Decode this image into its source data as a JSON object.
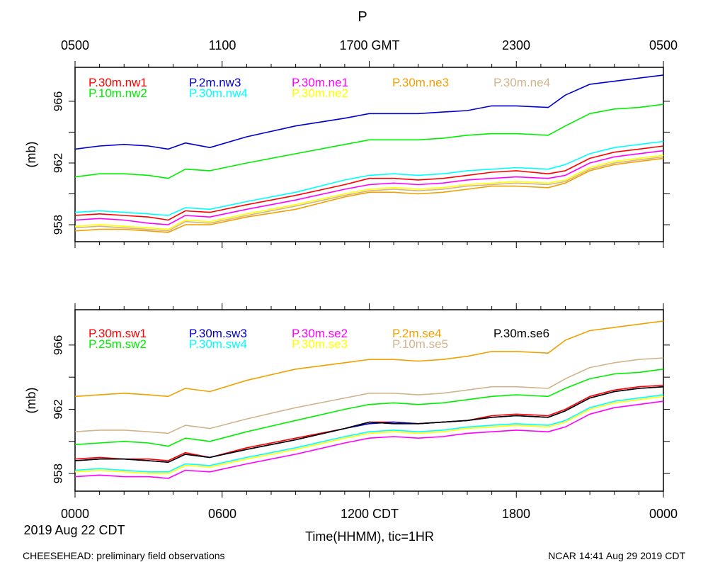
{
  "title": "P",
  "top_axis": {
    "ticks": [
      {
        "label": "0500",
        "hour": 0
      },
      {
        "label": "1100",
        "hour": 6
      },
      {
        "label": "1700 GMT",
        "hour": 12
      },
      {
        "label": "2300",
        "hour": 18
      },
      {
        "label": "0500",
        "hour": 24
      }
    ]
  },
  "bottom_axis": {
    "ticks": [
      {
        "label": "0000",
        "hour": 0
      },
      {
        "label": "0600",
        "hour": 6
      },
      {
        "label": "1200 CDT",
        "hour": 12
      },
      {
        "label": "1800",
        "hour": 18
      },
      {
        "label": "0000",
        "hour": 24
      }
    ],
    "date_label": "2019 Aug 22 CDT",
    "xlabel": "Time(HHMM), tic=1HR"
  },
  "footer": {
    "left": "CHEESEHEAD: preliminary field observations",
    "right": "NCAR 14:41 Aug 29 2019 CDT"
  },
  "chart_data": [
    {
      "type": "line",
      "ylabel": "(mb)",
      "xlim": [
        0,
        24
      ],
      "ylim": [
        956.9,
        968.2
      ],
      "yticks_labeled": [
        958,
        962,
        966
      ],
      "yticks_minor": [
        960,
        964
      ],
      "x": [
        0,
        1,
        2,
        3,
        3.8,
        4.5,
        5.5,
        7,
        9,
        11,
        12,
        13,
        14,
        15,
        16,
        17,
        18,
        19.3,
        20,
        21,
        22,
        23,
        24
      ],
      "series": [
        {
          "name": "P.30m.nw1",
          "color": "#ff0000",
          "values": [
            958.6,
            958.7,
            958.6,
            958.5,
            958.3,
            958.9,
            958.8,
            959.3,
            959.9,
            960.6,
            961.0,
            961.0,
            960.9,
            961.0,
            961.2,
            961.4,
            961.5,
            961.3,
            961.5,
            962.3,
            962.7,
            962.9,
            963.1
          ]
        },
        {
          "name": "P.10m.nw2",
          "color": "#00ee00",
          "values": [
            961.1,
            961.3,
            961.3,
            961.2,
            961.0,
            961.6,
            961.5,
            962.0,
            962.6,
            963.2,
            963.5,
            963.5,
            963.5,
            963.6,
            963.8,
            963.9,
            963.9,
            963.8,
            964.4,
            965.2,
            965.5,
            965.6,
            965.8
          ]
        },
        {
          "name": "P.2m.nw3",
          "color": "#0000cc",
          "values": [
            962.9,
            963.1,
            963.2,
            963.1,
            962.9,
            963.3,
            963.0,
            963.7,
            964.4,
            964.9,
            965.2,
            965.2,
            965.2,
            965.3,
            965.4,
            965.7,
            965.7,
            965.6,
            966.4,
            967.1,
            967.3,
            967.5,
            967.7
          ]
        },
        {
          "name": "P.30m.nw4",
          "color": "#00ffff",
          "values": [
            958.8,
            958.9,
            958.8,
            958.7,
            958.6,
            959.1,
            959.0,
            959.5,
            960.1,
            960.9,
            961.2,
            961.3,
            961.2,
            961.3,
            961.5,
            961.6,
            961.7,
            961.6,
            961.9,
            962.6,
            963.0,
            963.2,
            963.4
          ]
        },
        {
          "name": "P.30m.ne1",
          "color": "#ff00ff",
          "values": [
            958.3,
            958.4,
            958.3,
            958.1,
            958.0,
            958.6,
            958.5,
            959.0,
            959.6,
            960.3,
            960.6,
            960.7,
            960.6,
            960.7,
            960.9,
            961.0,
            961.1,
            961.0,
            961.2,
            962.0,
            962.4,
            962.6,
            962.8
          ]
        },
        {
          "name": "P.30m.ne2",
          "color": "#ffff00",
          "values": [
            957.9,
            958.0,
            957.9,
            957.8,
            957.7,
            958.3,
            958.2,
            958.7,
            959.3,
            960.0,
            960.3,
            960.4,
            960.3,
            960.4,
            960.6,
            960.7,
            960.8,
            960.7,
            960.9,
            961.7,
            962.1,
            962.3,
            962.5
          ]
        },
        {
          "name": "P.30m.ne3",
          "color": "#f0a000",
          "values": [
            957.6,
            957.7,
            957.7,
            957.6,
            957.5,
            958.0,
            958.0,
            958.5,
            959.0,
            959.8,
            960.1,
            960.1,
            960.0,
            960.1,
            960.3,
            960.5,
            960.5,
            960.4,
            960.7,
            961.5,
            961.9,
            962.1,
            962.3
          ]
        },
        {
          "name": "P.30m.ne4",
          "color": "#d2b48c",
          "values": [
            957.8,
            957.9,
            957.8,
            957.7,
            957.6,
            958.2,
            958.1,
            958.6,
            959.2,
            959.9,
            960.2,
            960.3,
            960.2,
            960.3,
            960.5,
            960.6,
            960.7,
            960.6,
            960.8,
            961.6,
            962.0,
            962.2,
            962.4
          ]
        }
      ]
    },
    {
      "type": "line",
      "ylabel": "(mb)",
      "xlim": [
        0,
        24
      ],
      "ylim": [
        956.9,
        968.2
      ],
      "yticks_labeled": [
        958,
        962,
        966
      ],
      "yticks_minor": [
        960,
        964
      ],
      "x": [
        0,
        1,
        2,
        3,
        3.8,
        4.5,
        5.5,
        7,
        9,
        11,
        12,
        13,
        14,
        15,
        16,
        17,
        18,
        19.3,
        20,
        21,
        22,
        23,
        24
      ],
      "series": [
        {
          "name": "P.30m.sw1",
          "color": "#ff0000",
          "values": [
            958.9,
            959.0,
            958.9,
            958.9,
            958.8,
            959.3,
            959.0,
            959.6,
            960.2,
            960.8,
            961.2,
            961.2,
            961.1,
            961.2,
            961.3,
            961.6,
            961.7,
            961.6,
            962.0,
            962.8,
            963.2,
            963.4,
            963.5
          ]
        },
        {
          "name": "P.25m.sw2",
          "color": "#00ee00",
          "values": [
            959.8,
            959.9,
            960.0,
            959.9,
            959.7,
            960.2,
            960.0,
            960.6,
            961.3,
            962.0,
            962.3,
            962.4,
            962.3,
            962.4,
            962.6,
            962.8,
            962.9,
            962.8,
            963.3,
            963.9,
            964.2,
            964.3,
            964.5
          ]
        },
        {
          "name": "P.30m.sw3",
          "color": "#0000cc",
          "values": [
            958.8,
            958.9,
            958.9,
            958.8,
            958.7,
            959.2,
            959.0,
            959.5,
            960.1,
            960.8,
            961.1,
            961.2,
            961.1,
            961.2,
            961.3,
            961.5,
            961.6,
            961.5,
            961.9,
            962.7,
            963.1,
            963.3,
            963.4
          ]
        },
        {
          "name": "P.30m.sw4",
          "color": "#00ffff",
          "values": [
            958.2,
            958.3,
            958.2,
            958.1,
            958.1,
            958.6,
            958.5,
            959.0,
            959.6,
            960.3,
            960.6,
            960.7,
            960.6,
            960.7,
            960.9,
            961.0,
            961.1,
            961.0,
            961.3,
            962.1,
            962.5,
            962.7,
            962.9
          ]
        },
        {
          "name": "P.30m.se2",
          "color": "#ff00ff",
          "values": [
            957.8,
            957.9,
            957.8,
            957.8,
            957.7,
            958.2,
            958.1,
            958.6,
            959.2,
            959.9,
            960.2,
            960.3,
            960.2,
            960.3,
            960.5,
            960.6,
            960.7,
            960.6,
            960.9,
            961.7,
            962.1,
            962.3,
            962.5
          ]
        },
        {
          "name": "P.30m.se3",
          "color": "#ffff00",
          "values": [
            958.1,
            958.2,
            958.1,
            958.0,
            958.0,
            958.5,
            958.4,
            958.9,
            959.5,
            960.2,
            960.5,
            960.6,
            960.5,
            960.6,
            960.8,
            960.9,
            961.0,
            960.9,
            961.2,
            962.0,
            962.4,
            962.6,
            962.8
          ]
        },
        {
          "name": "P.2m.se4",
          "color": "#f0a000",
          "values": [
            962.8,
            962.9,
            963.0,
            962.9,
            962.8,
            963.3,
            963.1,
            963.8,
            964.5,
            964.9,
            965.1,
            965.1,
            965.0,
            965.1,
            965.3,
            965.6,
            965.6,
            965.5,
            966.3,
            966.9,
            967.1,
            967.3,
            967.5
          ]
        },
        {
          "name": "P.10m.se5",
          "color": "#d2b48c",
          "values": [
            960.6,
            960.7,
            960.7,
            960.6,
            960.5,
            961.0,
            960.8,
            961.4,
            962.1,
            962.7,
            963.0,
            963.0,
            962.9,
            963.0,
            963.2,
            963.4,
            963.4,
            963.3,
            963.9,
            964.6,
            964.9,
            965.1,
            965.2
          ]
        },
        {
          "name": "P.30m.se6",
          "color": "#000000",
          "values": [
            958.8,
            958.9,
            958.9,
            958.8,
            958.7,
            959.2,
            959.0,
            959.5,
            960.1,
            960.8,
            961.2,
            961.1,
            961.1,
            961.2,
            961.3,
            961.5,
            961.6,
            961.5,
            961.9,
            962.7,
            963.1,
            963.3,
            963.4
          ]
        }
      ]
    }
  ]
}
